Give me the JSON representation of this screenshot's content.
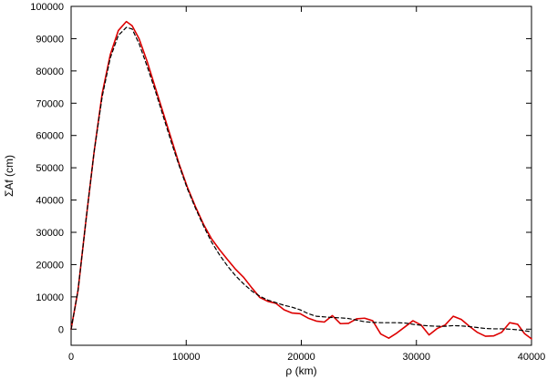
{
  "chart_data": {
    "type": "line",
    "title": "",
    "xlabel": "ρ (km)",
    "ylabel": "ΣAf (cm)",
    "xlim": [
      0,
      40000
    ],
    "ylim": [
      -5000,
      100000
    ],
    "x_ticks": [
      0,
      10000,
      20000,
      30000,
      40000
    ],
    "y_ticks": [
      0,
      10000,
      20000,
      30000,
      40000,
      50000,
      60000,
      70000,
      80000,
      90000,
      100000
    ],
    "x_tick_labels": [
      "0",
      "10000",
      "20000",
      "30000",
      "40000"
    ],
    "y_tick_labels": [
      "0",
      "10000",
      "20000",
      "30000",
      "40000",
      "50000",
      "60000",
      "70000",
      "80000",
      "90000",
      "100000"
    ],
    "grid": false,
    "legend": "none",
    "series": [
      {
        "color": "#dd0000",
        "line_style": "solid",
        "points": [
          [
            0,
            0
          ],
          [
            600,
            12000
          ],
          [
            1300,
            34000
          ],
          [
            2000,
            55000
          ],
          [
            2700,
            73000
          ],
          [
            3400,
            85000
          ],
          [
            4100,
            92500
          ],
          [
            4800,
            95300
          ],
          [
            5300,
            94000
          ],
          [
            5900,
            90000
          ],
          [
            6600,
            83000
          ],
          [
            7300,
            75000
          ],
          [
            8000,
            67000
          ],
          [
            8700,
            59000
          ],
          [
            9400,
            51000
          ],
          [
            10100,
            44000
          ],
          [
            10800,
            38000
          ],
          [
            11500,
            32500
          ],
          [
            12200,
            28000
          ],
          [
            12900,
            24600
          ],
          [
            13600,
            21500
          ],
          [
            14300,
            18500
          ],
          [
            15000,
            16000
          ],
          [
            15700,
            12800
          ],
          [
            16400,
            9800
          ],
          [
            17100,
            8600
          ],
          [
            17800,
            8000
          ],
          [
            18500,
            6000
          ],
          [
            19200,
            5000
          ],
          [
            19900,
            4800
          ],
          [
            20600,
            3400
          ],
          [
            21300,
            2500
          ],
          [
            22000,
            2200
          ],
          [
            22700,
            4200
          ],
          [
            23400,
            1700
          ],
          [
            24100,
            1800
          ],
          [
            24800,
            3200
          ],
          [
            25500,
            3400
          ],
          [
            26200,
            2600
          ],
          [
            26900,
            -1500
          ],
          [
            27600,
            -2800
          ],
          [
            28300,
            -1200
          ],
          [
            29000,
            700
          ],
          [
            29700,
            2600
          ],
          [
            30400,
            1300
          ],
          [
            31100,
            -1800
          ],
          [
            31800,
            200
          ],
          [
            32500,
            1300
          ],
          [
            33200,
            4000
          ],
          [
            33900,
            3000
          ],
          [
            34600,
            900
          ],
          [
            35300,
            -1000
          ],
          [
            36000,
            -2200
          ],
          [
            36700,
            -2100
          ],
          [
            37400,
            -1000
          ],
          [
            38100,
            2000
          ],
          [
            38800,
            1500
          ],
          [
            39400,
            -1400
          ],
          [
            40000,
            -3000
          ]
        ]
      },
      {
        "color": "#000000",
        "line_style": "dashed",
        "points": [
          [
            0,
            0
          ],
          [
            600,
            12000
          ],
          [
            1300,
            34000
          ],
          [
            2000,
            55000
          ],
          [
            2700,
            72000
          ],
          [
            3400,
            84000
          ],
          [
            4100,
            91000
          ],
          [
            4800,
            93500
          ],
          [
            5300,
            93000
          ],
          [
            5900,
            88500
          ],
          [
            6600,
            81500
          ],
          [
            7300,
            74000
          ],
          [
            8000,
            66000
          ],
          [
            8700,
            58000
          ],
          [
            9400,
            50500
          ],
          [
            10100,
            43500
          ],
          [
            10800,
            37500
          ],
          [
            11500,
            32000
          ],
          [
            12200,
            27000
          ],
          [
            12900,
            23000
          ],
          [
            13600,
            19500
          ],
          [
            14300,
            16500
          ],
          [
            15000,
            14000
          ],
          [
            15700,
            11800
          ],
          [
            16400,
            10200
          ],
          [
            17100,
            9000
          ],
          [
            17800,
            8200
          ],
          [
            18500,
            7400
          ],
          [
            19200,
            6800
          ],
          [
            19900,
            6000
          ],
          [
            20600,
            4800
          ],
          [
            21300,
            4000
          ],
          [
            22000,
            3800
          ],
          [
            22700,
            3600
          ],
          [
            23400,
            3500
          ],
          [
            24100,
            3300
          ],
          [
            24800,
            2800
          ],
          [
            25500,
            2300
          ],
          [
            26200,
            2100
          ],
          [
            26900,
            2000
          ],
          [
            27600,
            2000
          ],
          [
            28300,
            2000
          ],
          [
            29000,
            1900
          ],
          [
            29700,
            1500
          ],
          [
            30400,
            1200
          ],
          [
            31100,
            1000
          ],
          [
            31800,
            900
          ],
          [
            32500,
            900
          ],
          [
            33200,
            1100
          ],
          [
            33900,
            1000
          ],
          [
            34600,
            800
          ],
          [
            35300,
            500
          ],
          [
            36000,
            200
          ],
          [
            36700,
            100
          ],
          [
            37400,
            100
          ],
          [
            38100,
            0
          ],
          [
            38800,
            -200
          ],
          [
            39400,
            -500
          ],
          [
            40000,
            -800
          ]
        ]
      }
    ]
  }
}
